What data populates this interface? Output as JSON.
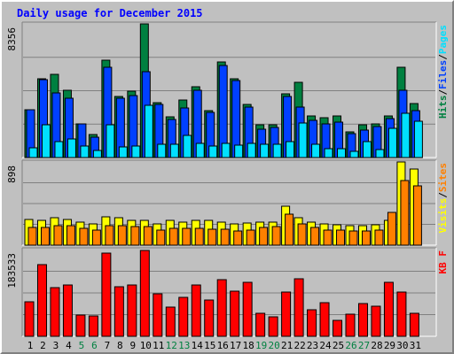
{
  "chart_data": [
    {
      "type": "bar",
      "title": "Daily usage for December 2015",
      "y_tick": "8356",
      "ylim": [
        0,
        8356
      ],
      "legend_position": "right",
      "legend": [
        {
          "label": "Pages",
          "color": "#00e0ff"
        },
        {
          "label": "/",
          "color": "#000000"
        },
        {
          "label": "Files",
          "color": "#0040ff"
        },
        {
          "label": "/",
          "color": "#000000"
        },
        {
          "label": "Hits",
          "color": "#008040"
        }
      ],
      "categories": [
        "1",
        "2",
        "3",
        "4",
        "5",
        "6",
        "7",
        "8",
        "9",
        "10",
        "11",
        "12",
        "13",
        "14",
        "15",
        "16",
        "17",
        "18",
        "19",
        "20",
        "21",
        "22",
        "23",
        "24",
        "25",
        "26",
        "27",
        "28",
        "29",
        "30",
        "31"
      ],
      "series": [
        {
          "name": "Hits",
          "color": "#008040",
          "values": [
            3010,
            4940,
            5190,
            4230,
            2080,
            1420,
            6110,
            3830,
            4160,
            8356,
            3410,
            2520,
            3590,
            4450,
            2930,
            5970,
            4950,
            3300,
            2020,
            2040,
            3970,
            4680,
            2610,
            2500,
            2610,
            1630,
            2020,
            2130,
            2610,
            5670,
            3380
          ]
        },
        {
          "name": "Files",
          "color": "#0040ff",
          "values": [
            3010,
            4880,
            4020,
            3690,
            2080,
            1300,
            5670,
            3700,
            3880,
            5370,
            3330,
            2390,
            3080,
            4230,
            2830,
            5760,
            4840,
            3170,
            1790,
            1860,
            3830,
            3130,
            2300,
            2090,
            2240,
            1500,
            1710,
            1950,
            2460,
            4190,
            2910
          ]
        },
        {
          "name": "Pages",
          "color": "#00e0ff",
          "values": [
            600,
            2050,
            1010,
            1140,
            700,
            460,
            2050,
            690,
            740,
            3250,
            820,
            810,
            1380,
            860,
            700,
            870,
            750,
            880,
            830,
            840,
            1010,
            2140,
            830,
            530,
            580,
            360,
            1010,
            520,
            1840,
            2760,
            2290
          ]
        }
      ]
    },
    {
      "type": "bar",
      "y_tick": "898",
      "ylim": [
        0,
        898
      ],
      "legend_position": "right",
      "legend": [
        {
          "label": "Sites",
          "color": "#ff8000"
        },
        {
          "label": "/",
          "color": "#000000"
        },
        {
          "label": "Visits",
          "color": "#ffff00"
        }
      ],
      "categories": [
        "1",
        "2",
        "3",
        "4",
        "5",
        "6",
        "7",
        "8",
        "9",
        "10",
        "11",
        "12",
        "13",
        "14",
        "15",
        "16",
        "17",
        "18",
        "19",
        "20",
        "21",
        "22",
        "23",
        "24",
        "25",
        "26",
        "27",
        "28",
        "29",
        "30",
        "31"
      ],
      "series": [
        {
          "name": "Visits",
          "color": "#ffff00",
          "values": [
            279,
            266,
            292,
            279,
            245,
            232,
            305,
            292,
            266,
            266,
            232,
            266,
            253,
            266,
            266,
            253,
            232,
            240,
            253,
            253,
            420,
            292,
            253,
            225,
            219,
            212,
            212,
            219,
            266,
            898,
            817
          ]
        },
        {
          "name": "Sites",
          "color": "#ff8000",
          "values": [
            194,
            194,
            207,
            207,
            181,
            162,
            207,
            214,
            201,
            201,
            162,
            181,
            181,
            181,
            168,
            168,
            155,
            162,
            194,
            201,
            336,
            233,
            194,
            161,
            162,
            155,
            155,
            162,
            349,
            700,
            638
          ]
        }
      ]
    },
    {
      "type": "bar",
      "y_tick": "183533",
      "ylim": [
        0,
        183533
      ],
      "legend_position": "right",
      "legend": [
        {
          "label": "KB F",
          "color": "#ff0000"
        }
      ],
      "categories": [
        "1",
        "2",
        "3",
        "4",
        "5",
        "6",
        "7",
        "8",
        "9",
        "10",
        "11",
        "12",
        "13",
        "14",
        "15",
        "16",
        "17",
        "18",
        "19",
        "20",
        "21",
        "22",
        "23",
        "24",
        "25",
        "26",
        "27",
        "28",
        "29",
        "30",
        "31"
      ],
      "series": [
        {
          "name": "KB F",
          "color": "#ff0000",
          "values": [
            73000,
            151000,
            103000,
            109000,
            45000,
            44000,
            176000,
            105000,
            108000,
            181000,
            89000,
            62000,
            83000,
            109000,
            76000,
            119000,
            95000,
            115000,
            49000,
            41000,
            94000,
            122000,
            57000,
            72000,
            33000,
            47000,
            70000,
            63000,
            114000,
            93000,
            49000
          ]
        }
      ]
    }
  ],
  "x_axis": {
    "labels": [
      "1",
      "2",
      "3",
      "4",
      "5",
      "6",
      "7",
      "8",
      "9",
      "10",
      "11",
      "12",
      "13",
      "14",
      "15",
      "16",
      "17",
      "18",
      "19",
      "20",
      "21",
      "22",
      "23",
      "24",
      "25",
      "26",
      "27",
      "28",
      "29",
      "30",
      "31"
    ],
    "weekend_color": "#008040",
    "weekday_color": "#000000",
    "weekend_days": [
      "5",
      "6",
      "12",
      "13",
      "19",
      "20",
      "26",
      "27"
    ]
  }
}
